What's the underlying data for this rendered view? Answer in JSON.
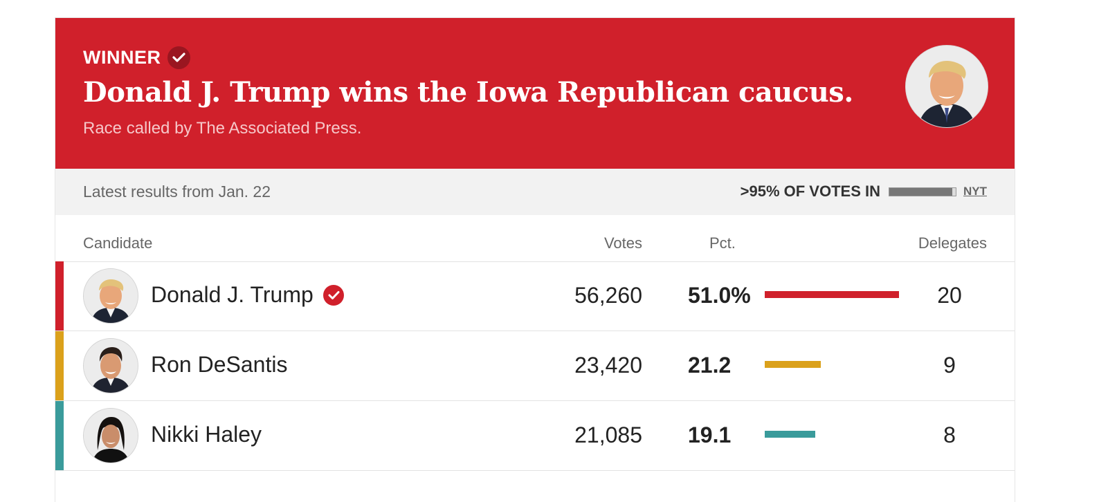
{
  "banner": {
    "winner_label": "WINNER",
    "headline": "Donald J. Trump wins the Iowa Republican caucus.",
    "subhead": "Race called by The Associated Press.",
    "color": "#d0202b"
  },
  "status": {
    "latest": "Latest results from Jan. 22",
    "votes_in": ">95% OF VOTES IN",
    "votes_in_fraction": 0.95,
    "source": "NYT"
  },
  "columns": {
    "candidate": "Candidate",
    "votes": "Votes",
    "pct": "Pct.",
    "delegates": "Delegates"
  },
  "candidates": [
    {
      "name": "Donald J. Trump",
      "votes": "56,260",
      "pct": "51.0%",
      "pct_value": 51.0,
      "delegates": "20",
      "color": "#d0202b",
      "winner": true
    },
    {
      "name": "Ron DeSantis",
      "votes": "23,420",
      "pct": "21.2",
      "pct_value": 21.2,
      "delegates": "9",
      "color": "#dba11b",
      "winner": false
    },
    {
      "name": "Nikki Haley",
      "votes": "21,085",
      "pct": "19.1",
      "pct_value": 19.1,
      "delegates": "8",
      "color": "#3a9b9b",
      "winner": false
    }
  ]
}
